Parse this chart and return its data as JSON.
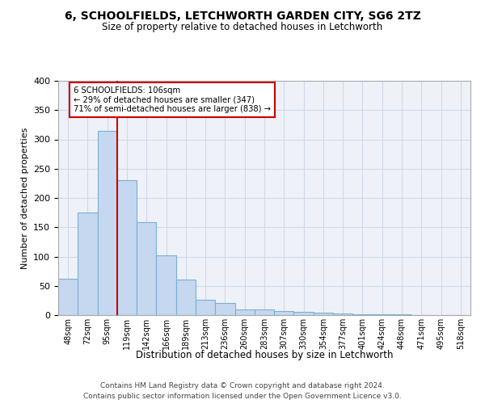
{
  "title": "6, SCHOOLFIELDS, LETCHWORTH GARDEN CITY, SG6 2TZ",
  "subtitle": "Size of property relative to detached houses in Letchworth",
  "xlabel": "Distribution of detached houses by size in Letchworth",
  "ylabel": "Number of detached properties",
  "categories": [
    "48sqm",
    "72sqm",
    "95sqm",
    "119sqm",
    "142sqm",
    "166sqm",
    "189sqm",
    "213sqm",
    "236sqm",
    "260sqm",
    "283sqm",
    "307sqm",
    "330sqm",
    "354sqm",
    "377sqm",
    "401sqm",
    "424sqm",
    "448sqm",
    "471sqm",
    "495sqm",
    "518sqm"
  ],
  "values": [
    62,
    175,
    315,
    230,
    158,
    102,
    61,
    26,
    21,
    10,
    10,
    7,
    6,
    4,
    3,
    2,
    1,
    1,
    0.5,
    0.5,
    0.5
  ],
  "bar_color": "#c5d8f0",
  "bar_edge_color": "#7baed4",
  "bar_edge_width": 0.8,
  "annotation_text_line1": "6 SCHOOLFIELDS: 106sqm",
  "annotation_text_line2": "← 29% of detached houses are smaller (347)",
  "annotation_text_line3": "71% of semi-detached houses are larger (838) →",
  "annotation_box_color": "#ffffff",
  "annotation_box_edge_color": "#cc0000",
  "vline_color": "#cc0000",
  "vline_x": 2.5,
  "ylim": [
    0,
    400
  ],
  "yticks": [
    0,
    50,
    100,
    150,
    200,
    250,
    300,
    350,
    400
  ],
  "grid_color": "#d0d8e8",
  "background_color": "#eef2f8",
  "footer_line1": "Contains HM Land Registry data © Crown copyright and database right 2024.",
  "footer_line2": "Contains public sector information licensed under the Open Government Licence v3.0."
}
